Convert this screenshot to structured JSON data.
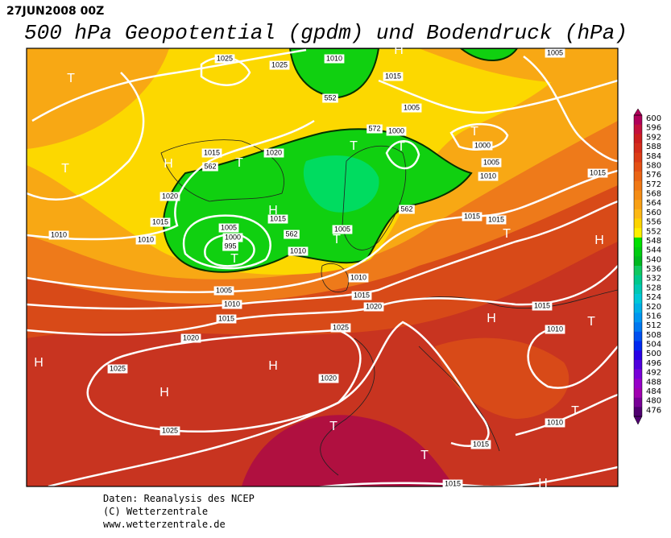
{
  "header": {
    "date": "27JUN2008 00Z",
    "title": "500 hPa Geopotential (gpdm) und Bodendruck (hPa)"
  },
  "colorbar": {
    "levels": [
      600,
      596,
      592,
      588,
      584,
      580,
      576,
      572,
      568,
      564,
      560,
      556,
      552,
      548,
      544,
      540,
      536,
      532,
      528,
      524,
      520,
      516,
      512,
      508,
      504,
      500,
      496,
      492,
      488,
      484,
      480,
      476
    ],
    "colors": [
      "#b0005a",
      "#c4103c",
      "#cc1e1e",
      "#d42c1a",
      "#dc3c16",
      "#e45014",
      "#ea6414",
      "#f07814",
      "#f48c14",
      "#f8a014",
      "#fcb814",
      "#fcd400",
      "#fcf000",
      "#00e000",
      "#00cc10",
      "#00b820",
      "#10c860",
      "#00c88c",
      "#00c8b4",
      "#00c8d8",
      "#00b0e6",
      "#0096f0",
      "#0078f0",
      "#0050f0",
      "#0028f0",
      "#2800e6",
      "#5000dc",
      "#7800d8",
      "#9600c8",
      "#a000b0",
      "#780096",
      "#500070"
    ]
  },
  "isobar_labels": [
    "1025",
    "1025",
    "1010",
    "1015",
    "1005",
    "1005",
    "552",
    "572",
    "1000",
    "1000",
    "1005",
    "1010",
    "1015",
    "1015",
    "1020",
    "562",
    "1020",
    "1015",
    "1015",
    "1010",
    "1010",
    "1005",
    "1000",
    "995",
    "562",
    "1010",
    "1005",
    "562",
    "1015",
    "1015",
    "1010",
    "1005",
    "1010",
    "1015",
    "1015",
    "1020",
    "1015",
    "1010",
    "1025",
    "1020",
    "1025",
    "1020",
    "1025",
    "1010",
    "1015",
    "1015"
  ],
  "pressure_centers": [
    "T",
    "H",
    "T",
    "H",
    "T",
    "T",
    "T",
    "T",
    "H",
    "T",
    "T",
    "T",
    "H",
    "H",
    "T",
    "H",
    "H",
    "H",
    "T",
    "T",
    "T",
    "H"
  ],
  "footer": [
    "Daten: Reanalysis des NCEP",
    "(C) Wetterzentrale",
    "www.wetterzentrale.de"
  ]
}
